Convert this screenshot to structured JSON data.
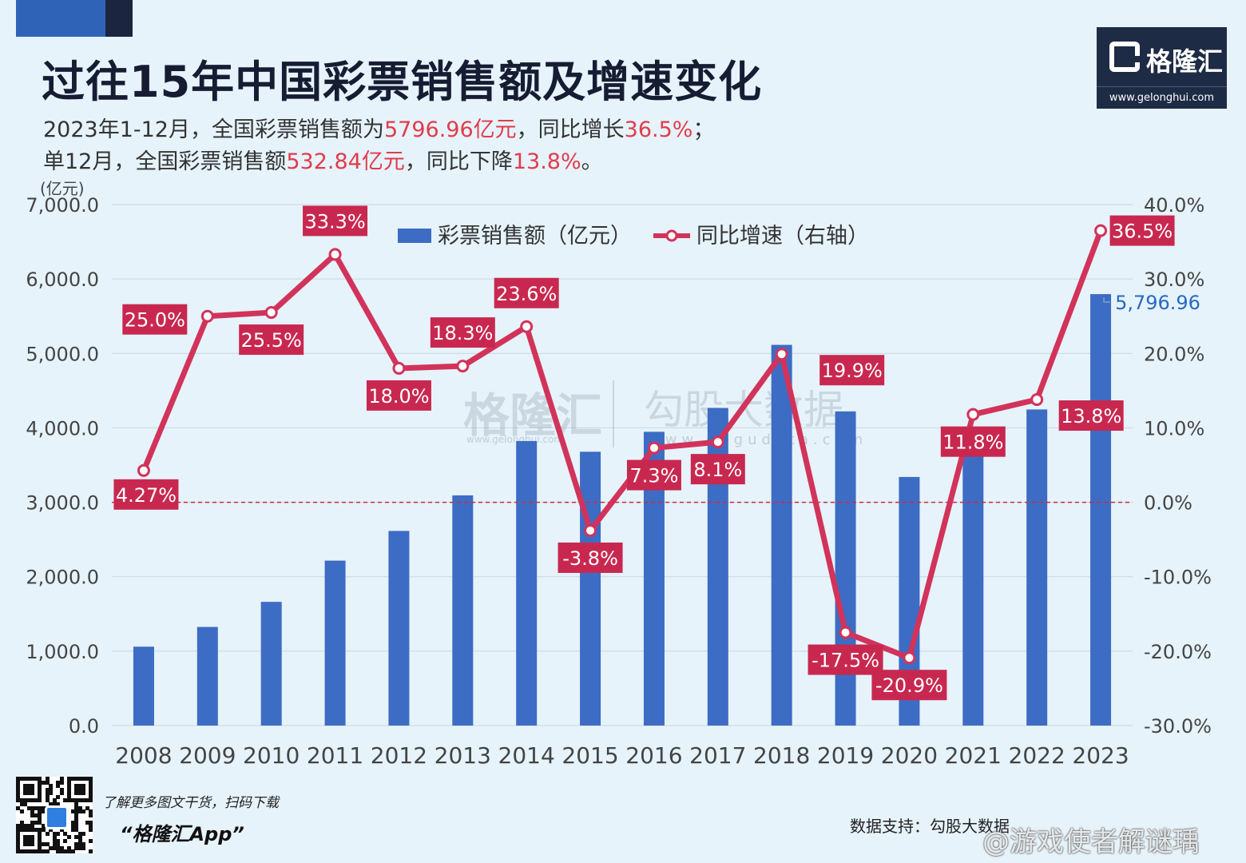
{
  "header": {
    "title": "过往15年中国彩票销售额及增速变化",
    "line1": [
      {
        "t": "2023年1-12月，全国彩票销售额为",
        "hl": false
      },
      {
        "t": "5796.96亿元",
        "hl": true
      },
      {
        "t": "，同比增长",
        "hl": false
      },
      {
        "t": "36.5%",
        "hl": true
      },
      {
        "t": "；",
        "hl": false
      }
    ],
    "line2": [
      {
        "t": "单12月，全国彩票销售额",
        "hl": false
      },
      {
        "t": "532.84亿元",
        "hl": true
      },
      {
        "t": "，同比下降",
        "hl": false
      },
      {
        "t": "13.8%",
        "hl": true
      },
      {
        "t": "。",
        "hl": false
      }
    ]
  },
  "logo": {
    "name": "格隆汇",
    "url": "www.gelonghui.com"
  },
  "watermark": {
    "brand": "格隆汇",
    "brand_url": "www.gelonghui.com",
    "data_brand": "勾股大数据",
    "data_url": "www.gogudata.com"
  },
  "colors": {
    "bar": "#3d6cc4",
    "line": "#d2335a",
    "label_bg": "#c8284f",
    "zero_line": "#d22a3a",
    "last_value": "#2769c2",
    "highlight": "#e23b4a"
  },
  "chart_data": {
    "type": "bar",
    "unit_label": "(亿元)",
    "categories": [
      "2008",
      "2009",
      "2010",
      "2011",
      "2012",
      "2013",
      "2014",
      "2015",
      "2016",
      "2017",
      "2018",
      "2019",
      "2020",
      "2021",
      "2022",
      "2023"
    ],
    "series": [
      {
        "name": "彩票销售额（亿元）",
        "type": "bar",
        "axis": "left",
        "values": [
          1060,
          1325,
          1662,
          2216,
          2615,
          3093,
          3823,
          3679,
          3947,
          4267,
          5115,
          4221,
          3340,
          3733,
          4247,
          5796.96
        ]
      },
      {
        "name": "同比增速（右轴）",
        "type": "line",
        "axis": "right",
        "values": [
          4.27,
          25.0,
          25.5,
          33.3,
          18.0,
          18.3,
          23.6,
          -3.8,
          7.3,
          8.1,
          19.9,
          -17.5,
          -20.9,
          11.8,
          13.8,
          36.5
        ],
        "labels": [
          "4.27%",
          "25.0%",
          "25.5%",
          "33.3%",
          "18.0%",
          "18.3%",
          "23.6%",
          "-3.8%",
          "7.3%",
          "8.1%",
          "19.9%",
          "-17.5%",
          "-20.9%",
          "11.8%",
          "13.8%",
          "36.5%"
        ]
      }
    ],
    "last_bar_label": "5,796.96",
    "y_left": {
      "min": 0,
      "max": 7000,
      "ticks": [
        "0.0",
        "1,000.0",
        "2,000.0",
        "3,000.0",
        "4,000.0",
        "5,000.0",
        "6,000.0",
        "7,000.0"
      ]
    },
    "y_right": {
      "min": -30,
      "max": 40,
      "ticks": [
        "-30.0%",
        "-20.0%",
        "-10.0%",
        "0.0%",
        "10.0%",
        "20.0%",
        "30.0%",
        "40.0%"
      ]
    },
    "grid": true,
    "zero_reference_line": true,
    "legend_position": "top-center"
  },
  "footer": {
    "promo": "了解更多图文干货，扫码下载",
    "app": "“格隆汇App”",
    "source": "数据支持：勾股大数据",
    "weibo": "@游戏使者解谜瑀"
  }
}
